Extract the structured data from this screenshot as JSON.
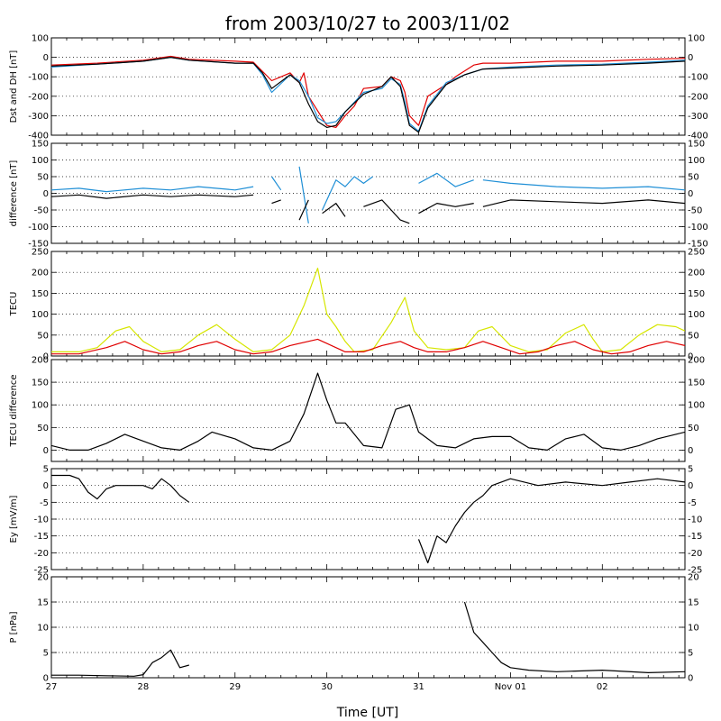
{
  "title": "from 2003/10/27 to 2003/11/02",
  "xlabel": "Time [UT]",
  "x_ticks": [
    "27",
    "28",
    "29",
    "30",
    "31",
    "Nov 01",
    "02"
  ],
  "colors": {
    "black": "#000000",
    "red": "#e00000",
    "blue": "#1f8fd6",
    "yellow": "#d6e600"
  },
  "chart_data": [
    {
      "type": "line",
      "ylabel": "Dst and DH [nT]",
      "xlim": [
        27,
        33.9
      ],
      "ylim": [
        -400,
        100
      ],
      "yticks": [
        -400,
        -300,
        -200,
        -100,
        0,
        100
      ],
      "grid": true,
      "series": [
        {
          "color": "red",
          "x": [
            27,
            27.5,
            28,
            28.3,
            28.5,
            29,
            29.2,
            29.4,
            29.6,
            29.7,
            29.75,
            29.8,
            30,
            30.1,
            30.2,
            30.3,
            30.4,
            30.6,
            30.7,
            30.8,
            30.85,
            30.9,
            31,
            31.1,
            31.3,
            31.4,
            31.5,
            31.6,
            31.7,
            32,
            32.5,
            33,
            33.5,
            33.9
          ],
          "y": [
            -40,
            -30,
            -15,
            5,
            -10,
            -20,
            -25,
            -120,
            -80,
            -130,
            -80,
            -200,
            -350,
            -360,
            -300,
            -250,
            -160,
            -150,
            -100,
            -120,
            -180,
            -300,
            -350,
            -200,
            -140,
            -100,
            -70,
            -40,
            -30,
            -30,
            -20,
            -20,
            -10,
            -5
          ]
        },
        {
          "color": "blue",
          "x": [
            27,
            27.5,
            28,
            28.3,
            28.5,
            29,
            29.2,
            29.3,
            29.4,
            29.6,
            29.7,
            29.8,
            29.9,
            30,
            30.1,
            30.2,
            30.4,
            30.6,
            30.7,
            30.8,
            30.85,
            30.9,
            31,
            31.1,
            31.3,
            31.5,
            31.7,
            32,
            32.5,
            33,
            33.5,
            33.9
          ],
          "y": [
            -50,
            -35,
            -20,
            0,
            -15,
            -30,
            -30,
            -90,
            -180,
            -90,
            -120,
            -200,
            -310,
            -340,
            -330,
            -280,
            -180,
            -160,
            -110,
            -140,
            -230,
            -340,
            -380,
            -250,
            -130,
            -90,
            -60,
            -50,
            -40,
            -35,
            -25,
            -15
          ]
        },
        {
          "color": "black",
          "x": [
            27,
            27.5,
            28,
            28.3,
            28.5,
            29,
            29.2,
            29.3,
            29.4,
            29.6,
            29.7,
            29.8,
            29.9,
            30,
            30.1,
            30.2,
            30.4,
            30.6,
            30.7,
            30.8,
            30.85,
            30.9,
            31,
            31.1,
            31.3,
            31.5,
            31.7,
            32,
            32.5,
            33,
            33.5,
            33.9
          ],
          "y": [
            -45,
            -35,
            -20,
            0,
            -15,
            -30,
            -30,
            -80,
            -160,
            -90,
            -130,
            -240,
            -330,
            -360,
            -350,
            -280,
            -190,
            -150,
            -100,
            -150,
            -250,
            -350,
            -385,
            -260,
            -140,
            -90,
            -60,
            -55,
            -45,
            -40,
            -30,
            -20
          ]
        }
      ]
    },
    {
      "type": "line",
      "ylabel": "difference [nT]",
      "xlim": [
        27,
        33.9
      ],
      "ylim": [
        -150,
        150
      ],
      "yticks": [
        -150,
        -100,
        -50,
        0,
        50,
        100,
        150
      ],
      "grid": true,
      "series": [
        {
          "color": "blue",
          "segments": [
            {
              "x": [
                27,
                27.3,
                27.6,
                28,
                28.3,
                28.6,
                29,
                29.2
              ],
              "y": [
                10,
                15,
                5,
                15,
                10,
                20,
                10,
                20
              ]
            },
            {
              "x": [
                29.4,
                29.5
              ],
              "y": [
                50,
                10
              ]
            },
            {
              "x": [
                29.7,
                29.8
              ],
              "y": [
                80,
                -90
              ]
            },
            {
              "x": [
                29.95,
                30.1,
                30.2,
                30.3,
                30.4,
                30.5
              ],
              "y": [
                -50,
                40,
                20,
                50,
                30,
                50
              ]
            },
            {
              "x": [
                31,
                31.2,
                31.4,
                31.6
              ],
              "y": [
                30,
                60,
                20,
                40
              ]
            },
            {
              "x": [
                31.7,
                32,
                32.5,
                33,
                33.5,
                33.9
              ],
              "y": [
                40,
                30,
                20,
                15,
                20,
                10
              ]
            }
          ]
        },
        {
          "color": "black",
          "segments": [
            {
              "x": [
                27,
                27.3,
                27.6,
                28,
                28.3,
                28.6,
                29,
                29.2
              ],
              "y": [
                -10,
                -5,
                -15,
                -5,
                -10,
                -5,
                -10,
                -5
              ]
            },
            {
              "x": [
                29.4,
                29.5
              ],
              "y": [
                -30,
                -20
              ]
            },
            {
              "x": [
                29.7,
                29.8
              ],
              "y": [
                -80,
                -20
              ]
            },
            {
              "x": [
                29.95,
                30.1,
                30.2
              ],
              "y": [
                -60,
                -30,
                -70
              ]
            },
            {
              "x": [
                30.4,
                30.6,
                30.8,
                30.9
              ],
              "y": [
                -40,
                -20,
                -80,
                -90
              ]
            },
            {
              "x": [
                31,
                31.2,
                31.4,
                31.6
              ],
              "y": [
                -60,
                -30,
                -40,
                -30
              ]
            },
            {
              "x": [
                31.7,
                32,
                32.5,
                33,
                33.5,
                33.9
              ],
              "y": [
                -40,
                -20,
                -25,
                -30,
                -20,
                -30
              ]
            }
          ]
        }
      ]
    },
    {
      "type": "line",
      "ylabel": "TECU",
      "xlim": [
        27,
        33.9
      ],
      "ylim": [
        0,
        250
      ],
      "yticks": [
        0,
        50,
        100,
        150,
        200,
        250
      ],
      "grid": true,
      "series": [
        {
          "color": "yellow",
          "x": [
            27,
            27.3,
            27.5,
            27.7,
            27.85,
            28,
            28.2,
            28.4,
            28.6,
            28.8,
            29,
            29.2,
            29.4,
            29.6,
            29.75,
            29.9,
            30,
            30.1,
            30.2,
            30.3,
            30.5,
            30.7,
            30.85,
            30.95,
            31.1,
            31.3,
            31.5,
            31.65,
            31.8,
            32,
            32.2,
            32.4,
            32.6,
            32.8,
            32.9,
            33,
            33.2,
            33.4,
            33.6,
            33.8,
            33.9
          ],
          "y": [
            10,
            10,
            20,
            60,
            70,
            35,
            10,
            15,
            50,
            75,
            40,
            10,
            15,
            50,
            120,
            210,
            100,
            70,
            35,
            10,
            15,
            80,
            140,
            60,
            20,
            15,
            20,
            60,
            70,
            25,
            10,
            15,
            55,
            75,
            40,
            10,
            15,
            50,
            75,
            70,
            60
          ]
        },
        {
          "color": "red",
          "x": [
            27,
            27.3,
            27.6,
            27.8,
            28,
            28.2,
            28.4,
            28.6,
            28.8,
            29,
            29.2,
            29.4,
            29.6,
            29.9,
            30,
            30.2,
            30.4,
            30.6,
            30.8,
            30.95,
            31.1,
            31.3,
            31.5,
            31.7,
            31.9,
            32.1,
            32.3,
            32.5,
            32.7,
            32.9,
            33.1,
            33.3,
            33.5,
            33.7,
            33.9
          ],
          "y": [
            5,
            5,
            20,
            35,
            15,
            5,
            10,
            25,
            35,
            15,
            5,
            10,
            25,
            40,
            30,
            10,
            10,
            25,
            35,
            20,
            10,
            10,
            20,
            35,
            20,
            5,
            10,
            25,
            35,
            15,
            5,
            10,
            25,
            35,
            25
          ]
        }
      ]
    },
    {
      "type": "line",
      "ylabel": "TECU difference",
      "xlim": [
        27,
        33.9
      ],
      "ylim": [
        -25,
        200
      ],
      "yticks": [
        0,
        50,
        100,
        150,
        200
      ],
      "grid": true,
      "series": [
        {
          "color": "black",
          "x": [
            27,
            27.2,
            27.4,
            27.6,
            27.8,
            28,
            28.2,
            28.4,
            28.6,
            28.75,
            29,
            29.2,
            29.4,
            29.6,
            29.75,
            29.9,
            30,
            30.1,
            30.2,
            30.4,
            30.6,
            30.75,
            30.9,
            31,
            31.2,
            31.4,
            31.6,
            31.8,
            32,
            32.2,
            32.4,
            32.6,
            32.8,
            33,
            33.2,
            33.4,
            33.6,
            33.8,
            33.9
          ],
          "y": [
            10,
            0,
            0,
            15,
            35,
            20,
            5,
            0,
            20,
            40,
            25,
            5,
            0,
            20,
            80,
            170,
            110,
            60,
            60,
            10,
            5,
            90,
            100,
            40,
            10,
            5,
            25,
            30,
            30,
            5,
            0,
            25,
            35,
            5,
            0,
            10,
            25,
            35,
            40
          ]
        }
      ]
    },
    {
      "type": "line",
      "ylabel": "Ey [mV/m]",
      "xlim": [
        27,
        33.9
      ],
      "ylim": [
        -25,
        5
      ],
      "yticks": [
        -25,
        -20,
        -15,
        -10,
        -5,
        0,
        5
      ],
      "grid": true,
      "series": [
        {
          "color": "black",
          "segments": [
            {
              "x": [
                27,
                27.2,
                27.3,
                27.4,
                27.5,
                27.6,
                27.7,
                28,
                28.1,
                28.2,
                28.3,
                28.4,
                28.5
              ],
              "y": [
                3,
                3,
                2,
                -2,
                -4,
                -1,
                0,
                0,
                -1,
                2,
                0,
                -3,
                -5
              ]
            },
            {
              "x": [
                31,
                31.1,
                31.2,
                31.3,
                31.4,
                31.5,
                31.6,
                31.7,
                31.8,
                32,
                32.3,
                32.6,
                33,
                33.3,
                33.6,
                33.9
              ],
              "y": [
                -16,
                -23,
                -15,
                -17,
                -12,
                -8,
                -5,
                -3,
                0,
                2,
                0,
                1,
                0,
                1,
                2,
                1
              ]
            }
          ]
        }
      ]
    },
    {
      "type": "line",
      "ylabel": "P [nPa]",
      "xlim": [
        27,
        33.9
      ],
      "ylim": [
        0,
        20
      ],
      "yticks": [
        0,
        5,
        10,
        15,
        20
      ],
      "grid": true,
      "series": [
        {
          "color": "black",
          "segments": [
            {
              "x": [
                27,
                27.3,
                27.6,
                27.9,
                28,
                28.1,
                28.2,
                28.3,
                28.4,
                28.5
              ],
              "y": [
                0.5,
                0.5,
                0.4,
                0.3,
                0.6,
                3,
                4,
                5.5,
                2,
                2.5
              ]
            },
            {
              "x": [
                31.5,
                31.6,
                31.7,
                31.8,
                31.9,
                32,
                32.2,
                32.5,
                33,
                33.5,
                33.9
              ],
              "y": [
                15,
                9,
                7,
                5,
                3,
                2,
                1.5,
                1.2,
                1.5,
                1,
                1.2
              ]
            }
          ]
        }
      ]
    }
  ]
}
